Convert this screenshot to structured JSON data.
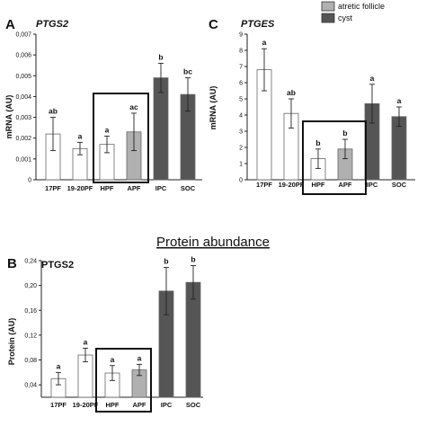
{
  "section_title": "Protein abundance",
  "legend": [
    {
      "label": "atretic follicle",
      "color": "#b0b0b0"
    },
    {
      "label": "cyst",
      "color": "#555555"
    }
  ],
  "fill_colors": {
    "white": "#ffffff",
    "light": "#b0b0b0",
    "dark": "#555555"
  },
  "chart_data": [
    {
      "panel_label": "A",
      "type": "bar",
      "title": "PTGS2",
      "ylabel": "mRNA (AU)",
      "categories": [
        "17PF",
        "19-20PF",
        "HPF",
        "APF",
        "IPC",
        "SOC"
      ],
      "values": [
        0.0022,
        0.0015,
        0.0017,
        0.0023,
        0.0049,
        0.0041
      ],
      "errors": [
        0.0008,
        0.0003,
        0.0004,
        0.0009,
        0.0007,
        0.0008
      ],
      "significance": [
        "ab",
        "a",
        "a",
        "ac",
        "b",
        "bc"
      ],
      "fills": [
        "white",
        "white",
        "white",
        "light",
        "dark",
        "dark"
      ],
      "ylim": [
        0,
        0.007
      ],
      "yticks": [
        "0",
        "0,001",
        "0,002",
        "0,003",
        "0,004",
        "0,005",
        "0,006",
        "0,007"
      ],
      "highlight_categories": [
        "HPF",
        "APF"
      ],
      "grid": false
    },
    {
      "panel_label": "C",
      "type": "bar",
      "title": "PTGES",
      "ylabel": "mRNA (AU)",
      "categories": [
        "17PF",
        "19-20PF",
        "HPF",
        "APF",
        "IPC",
        "SOC"
      ],
      "values": [
        6.8,
        4.1,
        1.3,
        1.9,
        4.7,
        3.9
      ],
      "errors": [
        1.3,
        0.9,
        0.6,
        0.6,
        1.2,
        0.6
      ],
      "significance": [
        "a",
        "ab",
        "b",
        "b",
        "a",
        "a"
      ],
      "fills": [
        "white",
        "white",
        "white",
        "light",
        "dark",
        "dark"
      ],
      "ylim": [
        0,
        9
      ],
      "yticks": [
        "0",
        "1",
        "2",
        "3",
        "4",
        "5",
        "6",
        "7",
        "8",
        "9"
      ],
      "highlight_categories": [
        "HPF",
        "APF"
      ],
      "grid": false
    },
    {
      "panel_label": "B",
      "type": "bar",
      "title": "PTGS2",
      "ylabel": "Protein (AU)",
      "categories": [
        "17PF",
        "19-20PF",
        "HPF",
        "APF",
        "IPC",
        "SOC"
      ],
      "values": [
        0.05,
        0.088,
        0.059,
        0.064,
        0.191,
        0.205
      ],
      "errors": [
        0.01,
        0.011,
        0.012,
        0.009,
        0.038,
        0.027
      ],
      "significance": [
        "a",
        "a",
        "a",
        "a",
        "b",
        "b"
      ],
      "fills": [
        "white",
        "white",
        "white",
        "light",
        "dark",
        "dark"
      ],
      "ylim": [
        0.02,
        0.24
      ],
      "yticks": [
        "0,04",
        "0,08",
        "0,12",
        "0,16",
        "0,20",
        "0,24"
      ],
      "ytick_values": [
        0.04,
        0.08,
        0.12,
        0.16,
        0.2,
        0.24
      ],
      "highlight_categories": [
        "HPF",
        "APF"
      ],
      "grid": false
    }
  ]
}
